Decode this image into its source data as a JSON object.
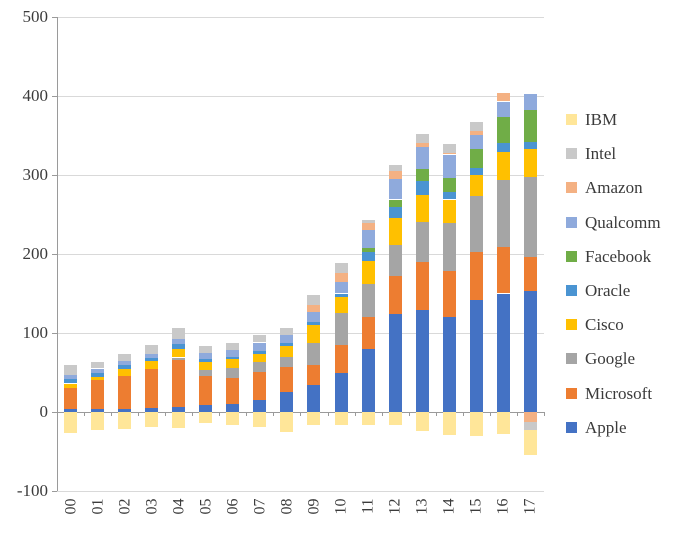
{
  "chart_data": {
    "type": "bar",
    "stacked": true,
    "title": "",
    "xlabel": "",
    "ylabel": "",
    "categories": [
      "00",
      "01",
      "02",
      "03",
      "04",
      "05",
      "06",
      "07",
      "08",
      "09",
      "10",
      "11",
      "12",
      "13",
      "14",
      "15",
      "16",
      "17"
    ],
    "series": [
      {
        "name": "IBM",
        "color": "#FFE699",
        "values": [
          -26,
          -23,
          -22,
          -19,
          -20,
          -14,
          -16,
          -19,
          -25,
          -16,
          -17,
          -17,
          -17,
          -24,
          -29,
          -30,
          -28,
          -32
        ]
      },
      {
        "name": "Intel",
        "color": "#C9C9C9",
        "values": [
          12,
          8,
          10,
          11,
          13,
          9,
          8,
          9,
          9,
          12,
          13,
          4,
          8,
          11,
          11,
          11,
          0,
          -10
        ]
      },
      {
        "name": "Amazon",
        "color": "#F4B183",
        "values": [
          0,
          0,
          0,
          0,
          0,
          0,
          0,
          0,
          0,
          9,
          11,
          9,
          10,
          6,
          2,
          5,
          11,
          -13
        ]
      },
      {
        "name": "Qualcomm",
        "color": "#8FAADC",
        "values": [
          5,
          5,
          5,
          6,
          7,
          8,
          9,
          11,
          10,
          13,
          15,
          22,
          26,
          27,
          30,
          18,
          19,
          20
        ]
      },
      {
        "name": "Facebook",
        "color": "#70AD47",
        "values": [
          0,
          0,
          0,
          0,
          0,
          0,
          0,
          0,
          0,
          0,
          0,
          6,
          9,
          16,
          17,
          24,
          34,
          40
        ]
      },
      {
        "name": "Oracle",
        "color": "#4A94D2",
        "values": [
          6,
          5,
          5,
          4,
          6,
          4,
          3,
          3,
          4,
          4,
          4,
          11,
          14,
          17,
          10,
          9,
          11,
          9
        ]
      },
      {
        "name": "Cisco",
        "color": "#FFC000",
        "values": [
          5,
          5,
          9,
          10,
          11,
          10,
          11,
          11,
          13,
          23,
          21,
          29,
          34,
          34,
          30,
          27,
          35,
          36
        ]
      },
      {
        "name": "Google",
        "color": "#A5A5A5",
        "values": [
          0,
          0,
          0,
          0,
          3,
          8,
          13,
          12,
          13,
          27,
          40,
          42,
          40,
          51,
          61,
          70,
          85,
          101
        ]
      },
      {
        "name": "Microsoft",
        "color": "#ED7D31",
        "values": [
          27,
          36,
          41,
          49,
          60,
          36,
          33,
          36,
          32,
          26,
          35,
          40,
          48,
          61,
          58,
          61,
          59,
          43
        ]
      },
      {
        "name": "Apple",
        "color": "#4472C4",
        "values": [
          4,
          4,
          4,
          5,
          6,
          9,
          10,
          15,
          25,
          34,
          50,
          80,
          124,
          129,
          120,
          142,
          150,
          153
        ]
      }
    ],
    "stack_bottom_to_top": [
      "Apple",
      "Microsoft",
      "Google",
      "Cisco",
      "Oracle",
      "Facebook",
      "Qualcomm",
      "Amazon",
      "Intel",
      "IBM"
    ],
    "ylim": [
      -100,
      500
    ],
    "y_ticks": [
      500,
      400,
      300,
      200,
      100,
      0,
      -100
    ],
    "y_tick_labels": [
      "500",
      "400",
      "300",
      "200",
      "100",
      "0",
      "-100"
    ],
    "grid": true,
    "legend_position": "right"
  }
}
